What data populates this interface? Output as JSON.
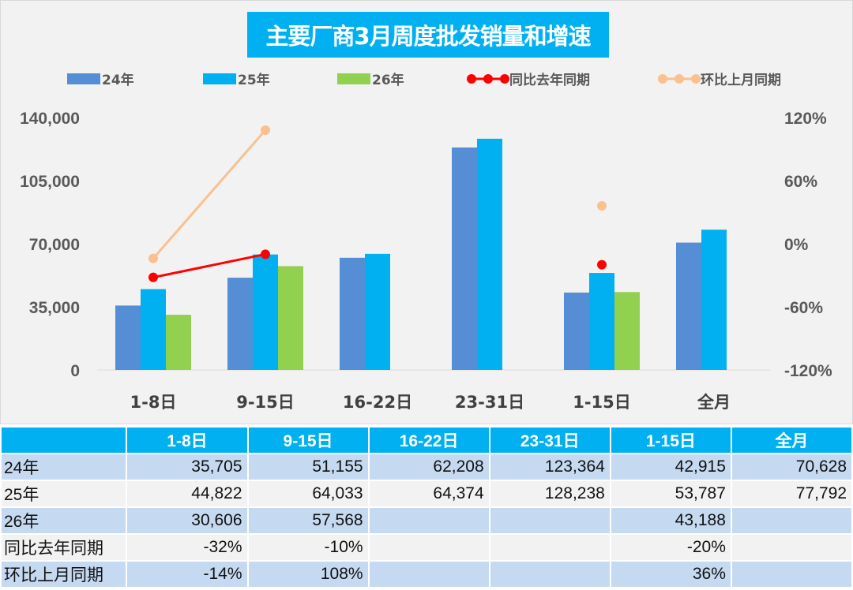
{
  "chart_data": {
    "type": "bar",
    "title": "主要厂商3月周度批发销量和增速",
    "categories": [
      "1-8日",
      "9-15日",
      "16-22日",
      "23-31日",
      "1-15日",
      "全月"
    ],
    "series": [
      {
        "name": "24年",
        "type": "bar",
        "axis": "left",
        "color": "#558ED5",
        "values": [
          35705,
          51155,
          62208,
          123364,
          42915,
          70628
        ]
      },
      {
        "name": "25年",
        "type": "bar",
        "axis": "left",
        "color": "#00B0F0",
        "values": [
          44822,
          64033,
          64374,
          128238,
          53787,
          77792
        ]
      },
      {
        "name": "26年",
        "type": "bar",
        "axis": "left",
        "color": "#92D050",
        "values": [
          30606,
          57568,
          null,
          null,
          43188,
          null
        ]
      },
      {
        "name": "同比去年同期",
        "type": "line",
        "axis": "right",
        "color": "#FF0000",
        "values": [
          -32,
          -10,
          null,
          null,
          -20,
          null
        ]
      },
      {
        "name": "环比上月同期",
        "type": "line",
        "axis": "right",
        "color": "#FAC090",
        "values": [
          -14,
          108,
          null,
          null,
          36,
          null
        ]
      }
    ],
    "yleft": {
      "ticks": [
        "0",
        "35,000",
        "70,000",
        "105,000",
        "140,000"
      ],
      "ylim": [
        0,
        140000
      ]
    },
    "yright": {
      "ticks": [
        "-120%",
        "-60%",
        "0%",
        "60%",
        "120%"
      ],
      "ylim": [
        -120,
        120
      ]
    },
    "legend": "top",
    "grid": false
  },
  "table": {
    "header": [
      "",
      "1-8日",
      "9-15日",
      "16-22日",
      "23-31日",
      "1-15日",
      "全月"
    ],
    "rows": [
      [
        "24年",
        "35,705",
        "51,155",
        "62,208",
        "123,364",
        "42,915",
        "70,628"
      ],
      [
        "25年",
        "44,822",
        "64,033",
        "64,374",
        "128,238",
        "53,787",
        "77,792"
      ],
      [
        "26年",
        "30,606",
        "57,568",
        "",
        "",
        "43,188",
        ""
      ],
      [
        "同比去年同期",
        "-32%",
        "-10%",
        "",
        "",
        "-20%",
        ""
      ],
      [
        "环比上月同期",
        "-14%",
        "108%",
        "",
        "",
        "36%",
        ""
      ]
    ]
  }
}
